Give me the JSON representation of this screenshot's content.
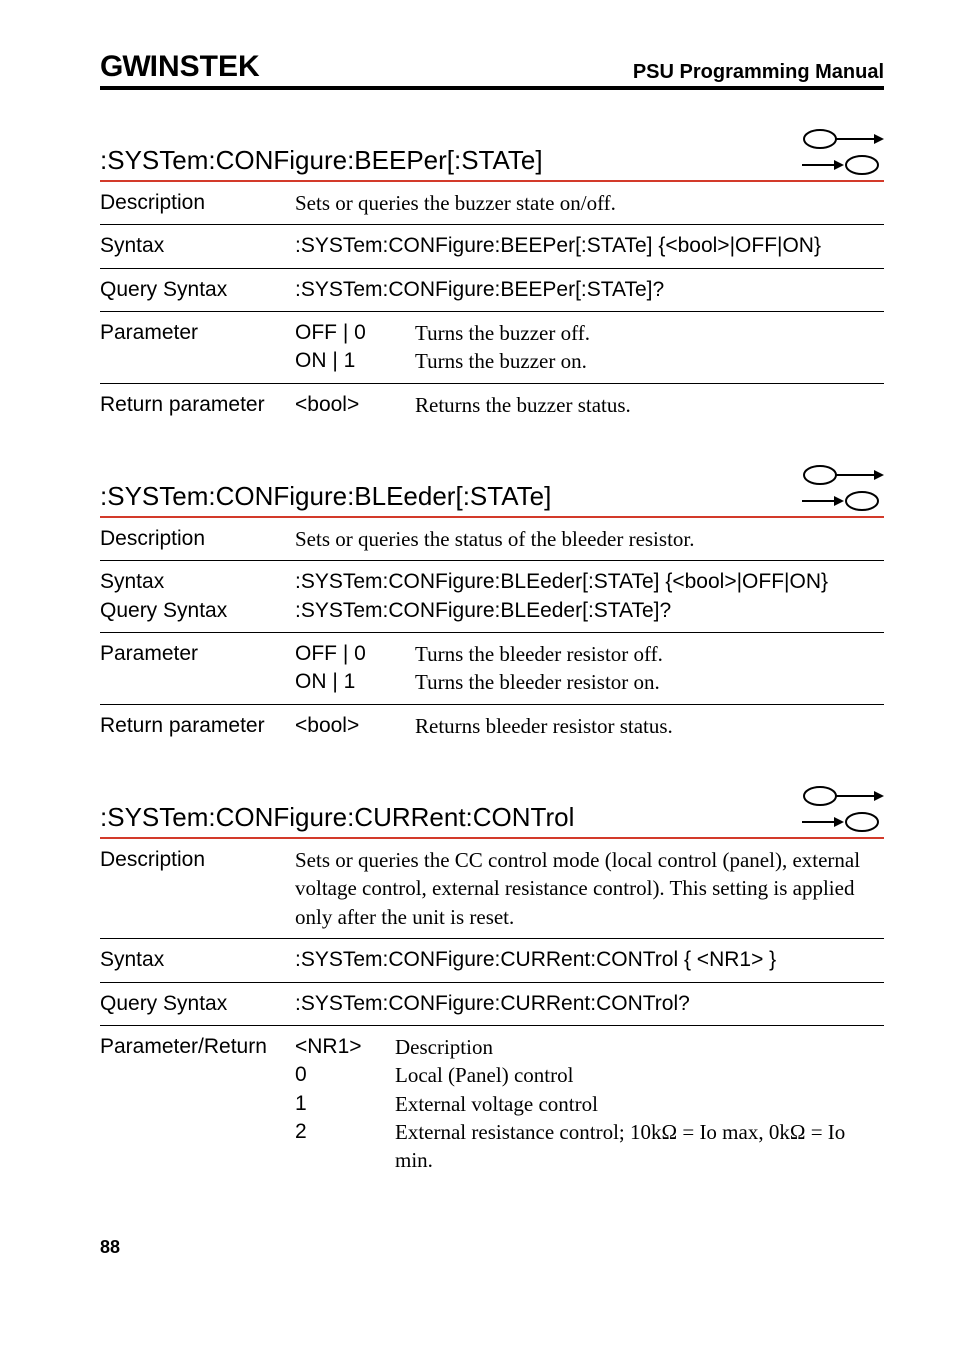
{
  "header": {
    "logo_part1": "GW",
    "logo_part2": "INSTEK",
    "title": "PSU Programming Manual"
  },
  "commands": [
    {
      "name": ":SYSTem:CONFigure:BEEPer[:STATe]",
      "set_icon": true,
      "query_icon": true,
      "rows": [
        {
          "type": "simple",
          "label": "Description",
          "content_serif": "Sets or queries the buzzer state on/off."
        },
        {
          "type": "simple",
          "label": "Syntax",
          "content_sans": ":SYSTem:CONFigure:BEEPer[:STATe] {<bool>|OFF|ON}"
        },
        {
          "type": "simple",
          "label": "Query Syntax",
          "content_sans": ":SYSTem:CONFigure:BEEPer[:STATe]?"
        },
        {
          "type": "param2",
          "label": "Parameter",
          "p1": "OFF | 0",
          "d1": "Turns the buzzer off.",
          "p2": "ON | 1",
          "d2": "Turns the buzzer on."
        },
        {
          "type": "param1",
          "label": "Return parameter",
          "p1": "<bool>",
          "d1": "Returns the buzzer status.",
          "no_border": true
        }
      ]
    },
    {
      "name": ":SYSTem:CONFigure:BLEeder[:STATe]",
      "set_icon": true,
      "query_icon": true,
      "rows": [
        {
          "type": "simple",
          "label": "Description",
          "content_serif": "Sets or queries the status of the bleeder resistor."
        },
        {
          "type": "stacked2",
          "label1": "Syntax",
          "label2": "Query Syntax",
          "line1_sans": ":SYSTem:CONFigure:BLEeder[:STATe] {<bool>|OFF|ON}",
          "line2_sans": ":SYSTem:CONFigure:BLEeder[:STATe]?"
        },
        {
          "type": "param2",
          "label": "Parameter",
          "p1": "OFF | 0",
          "d1": "Turns the bleeder resistor off.",
          "p2": "ON | 1",
          "d2": "Turns the bleeder resistor on."
        },
        {
          "type": "param1",
          "label": "Return parameter",
          "p1": "<bool>",
          "d1": "Returns bleeder resistor status.",
          "no_border": true
        }
      ]
    },
    {
      "name": ":SYSTem:CONFigure:CURRent:CONTrol",
      "set_icon": true,
      "query_icon": true,
      "rows": [
        {
          "type": "simple",
          "label": "Description",
          "content_serif": "Sets or queries the CC control mode (local control (panel), external voltage control, external resistance control). This setting is applied only after the unit is reset."
        },
        {
          "type": "simple",
          "label": "Syntax",
          "content_sans": ":SYSTem:CONFigure:CURRent:CONTrol { <NR1> }"
        },
        {
          "type": "simple",
          "label": "Query Syntax",
          "content_sans": ":SYSTem:CONFigure:CURRent:CONTrol?"
        },
        {
          "type": "param_list",
          "label": "Parameter/Return",
          "items": [
            {
              "p": "<NR1>",
              "d": "Description"
            },
            {
              "p": "0",
              "d": "Local (Panel) control"
            },
            {
              "p": "1",
              "d": "External voltage control"
            },
            {
              "p": "2",
              "d": "External resistance control; 10kΩ = Io max, 0kΩ = Io min."
            }
          ],
          "no_border": true
        }
      ]
    }
  ],
  "page_number": "88"
}
